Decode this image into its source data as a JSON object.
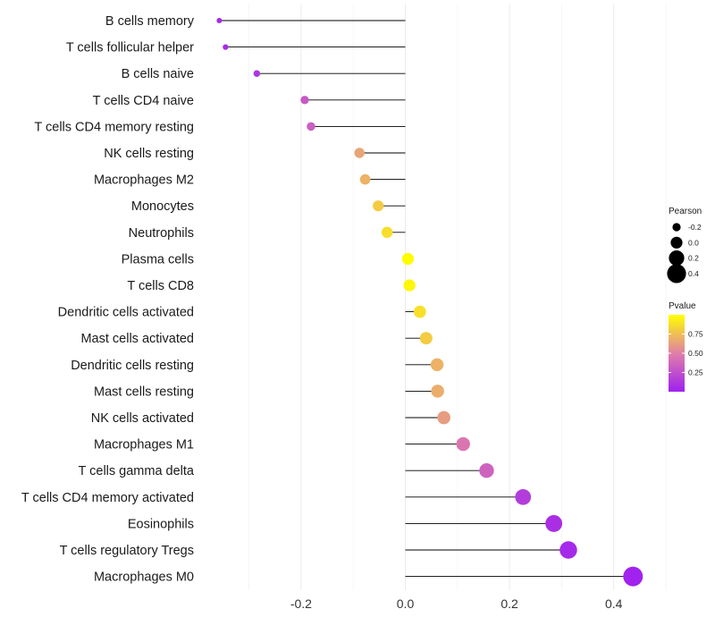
{
  "chart_data": {
    "type": "lollipop",
    "title": "",
    "xlabel": "",
    "ylabel": "",
    "xlim": [
      -0.38,
      0.48
    ],
    "xticks": [
      -0.2,
      0.0,
      0.2,
      0.4
    ],
    "xtick_labels": [
      "-0.2",
      "0.0",
      "0.2",
      "0.4"
    ],
    "grid": "vertical",
    "categories": [
      "B cells memory",
      "T cells follicular helper",
      "B cells naive",
      "T cells CD4 naive",
      "T cells CD4 memory resting",
      "NK cells resting",
      "Macrophages M2",
      "Monocytes",
      "Neutrophils",
      "Plasma cells",
      "T cells CD8",
      "Dendritic cells activated",
      "Mast cells activated",
      "Dendritic cells resting",
      "Mast cells resting",
      "NK cells activated",
      "Macrophages M1",
      "T cells gamma delta",
      "T cells CD4 memory activated",
      "Eosinophils",
      "T cells regulatory  Tregs",
      "Macrophages M0"
    ],
    "pearson": [
      -0.357,
      -0.345,
      -0.285,
      -0.193,
      -0.181,
      -0.088,
      -0.077,
      -0.052,
      -0.035,
      0.005,
      0.008,
      0.028,
      0.04,
      0.061,
      0.062,
      0.074,
      0.111,
      0.156,
      0.226,
      0.285,
      0.313,
      0.437
    ],
    "pvalue": [
      0.05,
      0.06,
      0.12,
      0.3,
      0.33,
      0.65,
      0.7,
      0.8,
      0.87,
      0.99,
      0.97,
      0.88,
      0.8,
      0.7,
      0.68,
      0.62,
      0.45,
      0.35,
      0.15,
      0.08,
      0.05,
      0.01
    ],
    "legend_size": {
      "title": "Pearson",
      "entries": [
        "-0.2",
        "0.0",
        "0.2",
        "0.4"
      ],
      "values": [
        -0.2,
        0.0,
        0.2,
        0.4
      ]
    },
    "legend_color": {
      "title": "Pvalue",
      "ticks": [
        "0.75",
        "0.50",
        "0.25"
      ],
      "tick_values": [
        0.75,
        0.5,
        0.25
      ],
      "low_color": "#a020f0",
      "mid_color": "#e07fa8",
      "high_color": "#ffff00"
    },
    "segment_color": "#000000",
    "grid_color": "#ebebeb"
  }
}
